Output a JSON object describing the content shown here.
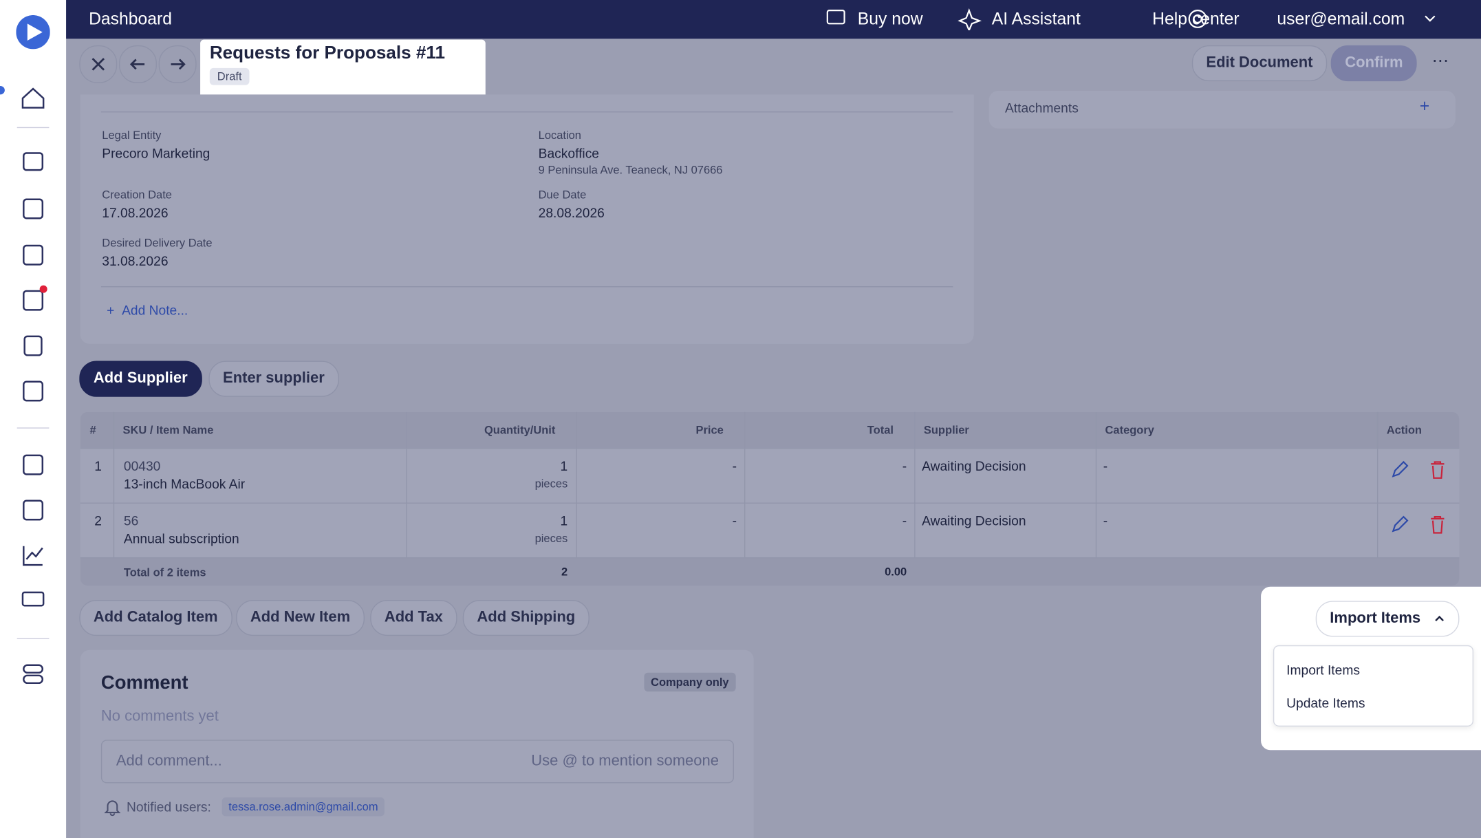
{
  "topbar": {
    "title": "Dashboard",
    "links": [
      "Buy now",
      "AI Assistant",
      "Help center"
    ],
    "user": "user@email.com"
  },
  "document": {
    "title": "Requests for Proposals #11",
    "status": "Draft",
    "actions": [
      "Edit Document",
      "Confirm"
    ],
    "attachments": "Attachments",
    "fields": [
      {
        "label": "Legal Entity",
        "value": "Precoro Marketing"
      },
      {
        "label": "Location",
        "value": "Backoffice",
        "detail": "9 Peninsula Ave. Teaneck, NJ 07666"
      },
      {
        "label": "Creation Date",
        "value": "17.08.2026"
      },
      {
        "label": "Due Date",
        "value": "28.08.2026"
      },
      {
        "label": "Desired Delivery Date",
        "value": "31.08.2026"
      }
    ],
    "add_note": "Add Note..."
  },
  "supplier_buttons": [
    "Add Supplier",
    "Enter supplier"
  ],
  "table": {
    "headers": [
      "#",
      "SKU / Item Name",
      "Quantity/Unit",
      "Price",
      "Total",
      "Supplier",
      "Category",
      "Action"
    ],
    "rows": [
      [
        "1",
        "00430",
        "13-inch MacBook Air",
        "1",
        "pieces",
        "-",
        "-",
        "Awaiting Decision",
        "-"
      ],
      [
        "2",
        "56",
        "Annual subscription",
        "1",
        "pieces",
        "-",
        "-",
        "Awaiting Decision",
        "-"
      ]
    ],
    "footer": [
      "Total of 2 items",
      "2",
      "0.00"
    ]
  },
  "item_buttons": [
    "Add Catalog Item",
    "Add New Item",
    "Add Tax",
    "Add Shipping"
  ],
  "import": {
    "button": "Import Items",
    "menu": [
      "Import Items",
      "Update Items"
    ]
  },
  "comment": {
    "title": "Comment",
    "visibility": "Company only",
    "empty": "No comments yet",
    "placeholder": "Add comment...",
    "hint": "Use @ to mention someone",
    "notified_label": "Notified users:",
    "notified": "tessa.rose.admin@gmail.com"
  }
}
